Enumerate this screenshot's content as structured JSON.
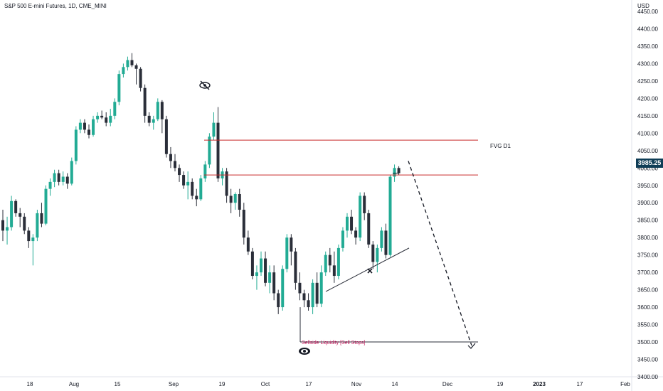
{
  "header": {
    "title": "S&P 500 E-mini Futures, 1D, CME_MINI",
    "currency": "USD"
  },
  "annotations": {
    "fvg_label": "FVG D1",
    "sellside_label": "Sellside Liquidity [Sell Stops]",
    "current_price": "3985.25"
  },
  "colors": {
    "up": "#22ab94",
    "down": "#2a2e39",
    "fvg_line": "#c62828",
    "ssl_text": "#c2185b",
    "badge": "#0f3d56"
  },
  "chart_data": {
    "type": "candlestick",
    "title": "S&P 500 E-mini Futures, 1D, CME_MINI",
    "ylabel": "USD",
    "ylim": [
      3400,
      4450
    ],
    "y_ticks": [
      "4450.00",
      "4400.00",
      "4350.00",
      "4300.00",
      "4250.00",
      "4200.00",
      "4150.00",
      "4100.00",
      "4050.00",
      "4000.00",
      "3950.00",
      "3900.00",
      "3850.00",
      "3800.00",
      "3750.00",
      "3700.00",
      "3650.00",
      "3600.00",
      "3550.00",
      "3500.00",
      "3450.00",
      "3400.00"
    ],
    "x_ticks": [
      "18",
      "Aug",
      "15",
      "Sep",
      "19",
      "Oct",
      "17",
      "Nov",
      "14",
      "Dec",
      "19",
      "2023",
      "17",
      "Feb"
    ],
    "candles": [
      {
        "o": 3850,
        "h": 3880,
        "l": 3790,
        "c": 3820
      },
      {
        "o": 3820,
        "h": 3860,
        "l": 3780,
        "c": 3830
      },
      {
        "o": 3830,
        "h": 3920,
        "l": 3820,
        "c": 3905
      },
      {
        "o": 3905,
        "h": 3910,
        "l": 3860,
        "c": 3870
      },
      {
        "o": 3870,
        "h": 3885,
        "l": 3830,
        "c": 3860
      },
      {
        "o": 3860,
        "h": 3870,
        "l": 3810,
        "c": 3820
      },
      {
        "o": 3820,
        "h": 3830,
        "l": 3770,
        "c": 3790
      },
      {
        "o": 3790,
        "h": 3810,
        "l": 3720,
        "c": 3800
      },
      {
        "o": 3800,
        "h": 3880,
        "l": 3790,
        "c": 3870
      },
      {
        "o": 3870,
        "h": 3900,
        "l": 3830,
        "c": 3840
      },
      {
        "o": 3840,
        "h": 3950,
        "l": 3835,
        "c": 3940
      },
      {
        "o": 3940,
        "h": 3970,
        "l": 3920,
        "c": 3960
      },
      {
        "o": 3960,
        "h": 3995,
        "l": 3945,
        "c": 3985
      },
      {
        "o": 3985,
        "h": 3995,
        "l": 3950,
        "c": 3960
      },
      {
        "o": 3960,
        "h": 3990,
        "l": 3950,
        "c": 3975
      },
      {
        "o": 3975,
        "h": 3985,
        "l": 3940,
        "c": 3955
      },
      {
        "o": 3955,
        "h": 4030,
        "l": 3950,
        "c": 4020
      },
      {
        "o": 4020,
        "h": 4120,
        "l": 4010,
        "c": 4110
      },
      {
        "o": 4110,
        "h": 4140,
        "l": 4100,
        "c": 4130
      },
      {
        "o": 4130,
        "h": 4140,
        "l": 4100,
        "c": 4110
      },
      {
        "o": 4110,
        "h": 4125,
        "l": 4085,
        "c": 4095
      },
      {
        "o": 4095,
        "h": 4150,
        "l": 4090,
        "c": 4140
      },
      {
        "o": 4140,
        "h": 4160,
        "l": 4130,
        "c": 4150
      },
      {
        "o": 4150,
        "h": 4165,
        "l": 4140,
        "c": 4145
      },
      {
        "o": 4145,
        "h": 4160,
        "l": 4120,
        "c": 4130
      },
      {
        "o": 4130,
        "h": 4170,
        "l": 4120,
        "c": 4150
      },
      {
        "o": 4150,
        "h": 4200,
        "l": 4140,
        "c": 4190
      },
      {
        "o": 4190,
        "h": 4280,
        "l": 4180,
        "c": 4270
      },
      {
        "o": 4270,
        "h": 4300,
        "l": 4260,
        "c": 4290
      },
      {
        "o": 4290,
        "h": 4320,
        "l": 4280,
        "c": 4310
      },
      {
        "o": 4310,
        "h": 4330,
        "l": 4290,
        "c": 4295
      },
      {
        "o": 4295,
        "h": 4300,
        "l": 4240,
        "c": 4285
      },
      {
        "o": 4285,
        "h": 4290,
        "l": 4220,
        "c": 4230
      },
      {
        "o": 4230,
        "h": 4240,
        "l": 4130,
        "c": 4150
      },
      {
        "o": 4150,
        "h": 4160,
        "l": 4120,
        "c": 4130
      },
      {
        "o": 4130,
        "h": 4150,
        "l": 4110,
        "c": 4140
      },
      {
        "o": 4140,
        "h": 4200,
        "l": 4135,
        "c": 4190
      },
      {
        "o": 4190,
        "h": 4195,
        "l": 4100,
        "c": 4140
      },
      {
        "o": 4140,
        "h": 4150,
        "l": 4030,
        "c": 4040
      },
      {
        "o": 4040,
        "h": 4060,
        "l": 4000,
        "c": 4020
      },
      {
        "o": 4020,
        "h": 4040,
        "l": 3990,
        "c": 4000
      },
      {
        "o": 4000,
        "h": 4010,
        "l": 3960,
        "c": 3980
      },
      {
        "o": 3980,
        "h": 3990,
        "l": 3940,
        "c": 3950
      },
      {
        "o": 3950,
        "h": 3990,
        "l": 3910,
        "c": 3960
      },
      {
        "o": 3960,
        "h": 3970,
        "l": 3910,
        "c": 3920
      },
      {
        "o": 3920,
        "h": 3940,
        "l": 3890,
        "c": 3910
      },
      {
        "o": 3910,
        "h": 3980,
        "l": 3905,
        "c": 3970
      },
      {
        "o": 3970,
        "h": 4020,
        "l": 3960,
        "c": 4010
      },
      {
        "o": 4010,
        "h": 4100,
        "l": 4000,
        "c": 4090
      },
      {
        "o": 4090,
        "h": 4160,
        "l": 4080,
        "c": 4130
      },
      {
        "o": 4130,
        "h": 4175,
        "l": 3960,
        "c": 3970
      },
      {
        "o": 3970,
        "h": 4000,
        "l": 3950,
        "c": 3990
      },
      {
        "o": 3990,
        "h": 4000,
        "l": 3900,
        "c": 3920
      },
      {
        "o": 3920,
        "h": 3940,
        "l": 3870,
        "c": 3900
      },
      {
        "o": 3900,
        "h": 3930,
        "l": 3880,
        "c": 3925
      },
      {
        "o": 3925,
        "h": 3940,
        "l": 3860,
        "c": 3880
      },
      {
        "o": 3880,
        "h": 3900,
        "l": 3780,
        "c": 3800
      },
      {
        "o": 3800,
        "h": 3820,
        "l": 3750,
        "c": 3760
      },
      {
        "o": 3760,
        "h": 3770,
        "l": 3680,
        "c": 3690
      },
      {
        "o": 3690,
        "h": 3720,
        "l": 3650,
        "c": 3700
      },
      {
        "o": 3700,
        "h": 3760,
        "l": 3690,
        "c": 3740
      },
      {
        "o": 3740,
        "h": 3760,
        "l": 3660,
        "c": 3670
      },
      {
        "o": 3670,
        "h": 3720,
        "l": 3640,
        "c": 3700
      },
      {
        "o": 3700,
        "h": 3720,
        "l": 3620,
        "c": 3640
      },
      {
        "o": 3640,
        "h": 3650,
        "l": 3580,
        "c": 3600
      },
      {
        "o": 3600,
        "h": 3720,
        "l": 3590,
        "c": 3710
      },
      {
        "o": 3710,
        "h": 3810,
        "l": 3700,
        "c": 3800
      },
      {
        "o": 3800,
        "h": 3810,
        "l": 3720,
        "c": 3760
      },
      {
        "o": 3760,
        "h": 3770,
        "l": 3650,
        "c": 3670
      },
      {
        "o": 3670,
        "h": 3700,
        "l": 3620,
        "c": 3640
      },
      {
        "o": 3640,
        "h": 3650,
        "l": 3600,
        "c": 3620
      },
      {
        "o": 3620,
        "h": 3640,
        "l": 3590,
        "c": 3600
      },
      {
        "o": 3600,
        "h": 3680,
        "l": 3580,
        "c": 3670
      },
      {
        "o": 3670,
        "h": 3700,
        "l": 3600,
        "c": 3610
      },
      {
        "o": 3610,
        "h": 3720,
        "l": 3600,
        "c": 3700
      },
      {
        "o": 3700,
        "h": 3760,
        "l": 3690,
        "c": 3750
      },
      {
        "o": 3750,
        "h": 3770,
        "l": 3700,
        "c": 3720
      },
      {
        "o": 3720,
        "h": 3760,
        "l": 3670,
        "c": 3690
      },
      {
        "o": 3690,
        "h": 3780,
        "l": 3680,
        "c": 3770
      },
      {
        "o": 3770,
        "h": 3830,
        "l": 3760,
        "c": 3820
      },
      {
        "o": 3820,
        "h": 3870,
        "l": 3800,
        "c": 3860
      },
      {
        "o": 3860,
        "h": 3880,
        "l": 3810,
        "c": 3820
      },
      {
        "o": 3820,
        "h": 3830,
        "l": 3780,
        "c": 3800
      },
      {
        "o": 3800,
        "h": 3930,
        "l": 3790,
        "c": 3920
      },
      {
        "o": 3920,
        "h": 3930,
        "l": 3850,
        "c": 3870
      },
      {
        "o": 3870,
        "h": 3880,
        "l": 3770,
        "c": 3780
      },
      {
        "o": 3780,
        "h": 3790,
        "l": 3710,
        "c": 3730
      },
      {
        "o": 3730,
        "h": 3780,
        "l": 3700,
        "c": 3770
      },
      {
        "o": 3770,
        "h": 3830,
        "l": 3760,
        "c": 3820
      },
      {
        "o": 3820,
        "h": 3840,
        "l": 3740,
        "c": 3750
      },
      {
        "o": 3750,
        "h": 3980,
        "l": 3745,
        "c": 3975
      },
      {
        "o": 3975,
        "h": 4010,
        "l": 3960,
        "c": 4000
      },
      {
        "o": 4000,
        "h": 4005,
        "l": 3980,
        "c": 3985
      }
    ],
    "fvg_levels": [
      4080,
      3980
    ],
    "sellside_level": 3500
  }
}
